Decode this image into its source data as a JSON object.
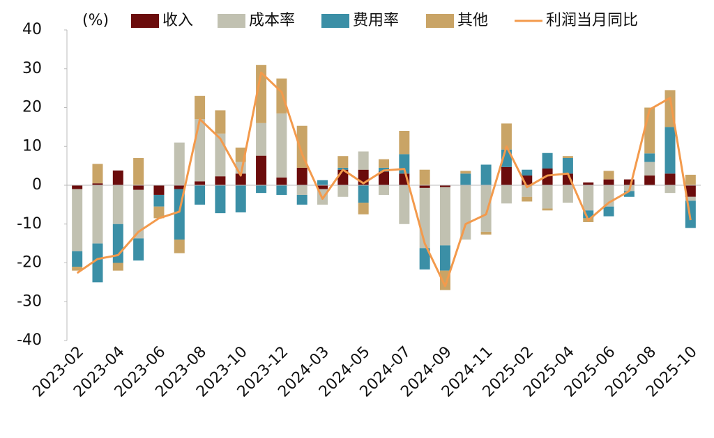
{
  "chart_data": {
    "type": "bar",
    "stacked": true,
    "unit_label": "(%)",
    "categories": [
      "2023-02",
      null,
      "2023-04",
      null,
      "2023-06",
      null,
      "2023-08",
      null,
      "2023-10",
      null,
      "2023-12",
      null,
      "2024-03",
      null,
      "2024-05",
      null,
      "2024-07",
      null,
      "2024-09",
      null,
      "2024-11",
      null,
      "2025-02",
      null,
      "2025-04",
      null,
      "2025-06",
      null,
      "2025-08",
      null,
      "2025-10"
    ],
    "series": [
      {
        "name": "收入",
        "color": "#6b0c0c",
        "values": [
          -1,
          0.5,
          3.8,
          -1.2,
          -2.5,
          -1,
          1,
          2.3,
          3,
          7.6,
          2,
          4.5,
          -1,
          4,
          4,
          3.5,
          3,
          -0.7,
          -0.5,
          0,
          0,
          4.7,
          2.5,
          4.3,
          3,
          0.7,
          1.5,
          1.5,
          2.5,
          3,
          -3
        ]
      },
      {
        "name": "成本率",
        "color": "#c1c1b1",
        "values": [
          -16,
          -15,
          -10,
          -12.5,
          0,
          11,
          16,
          11,
          3,
          8.4,
          16.5,
          -2.5,
          -4,
          -3,
          4.7,
          -2.5,
          -10,
          -15.5,
          -15,
          -14,
          -12,
          -4.7,
          -3,
          -6,
          -4.5,
          -6.5,
          -5.5,
          -1.5,
          3.5,
          -2,
          -1
        ]
      },
      {
        "name": "费用率",
        "color": "#3b8fa6",
        "values": [
          -4,
          -10,
          -10,
          -5.7,
          -3,
          -13,
          -5,
          -7.2,
          -7,
          -2,
          -2.5,
          -2.5,
          1.3,
          0.5,
          -4.5,
          1,
          5,
          -5.5,
          -6.5,
          3,
          5.3,
          4.5,
          1.5,
          4,
          4,
          -2,
          -2.5,
          -1.5,
          2.2,
          12,
          -7
        ]
      },
      {
        "name": "其他",
        "color": "#c9a466",
        "values": [
          -1,
          5,
          -2,
          7,
          -3,
          -3.5,
          6,
          6,
          3.7,
          15,
          9,
          10.8,
          0,
          3,
          -3,
          2.2,
          6,
          4,
          -5,
          0.7,
          -0.7,
          6.7,
          -1.2,
          -0.5,
          0.5,
          -1,
          2.2,
          0,
          11.8,
          9.5,
          2.7
        ]
      },
      {
        "name": "利润当月同比",
        "type": "line",
        "color": "#f39a4c",
        "values": [
          -22.6,
          -19,
          -18,
          -12,
          -8.5,
          -6.8,
          17,
          12,
          2.5,
          29,
          24,
          8,
          -3.5,
          4,
          0.5,
          3.8,
          4.2,
          -15,
          -26,
          -10,
          -7.5,
          10,
          -0.5,
          2.5,
          3,
          -9,
          -4.5,
          -1.5,
          19.5,
          22.5,
          -9
        ]
      }
    ],
    "ylim": [
      -40,
      40
    ],
    "yticks": [
      -40,
      -30,
      -20,
      -10,
      0,
      10,
      20,
      30,
      40
    ],
    "grid": false
  }
}
